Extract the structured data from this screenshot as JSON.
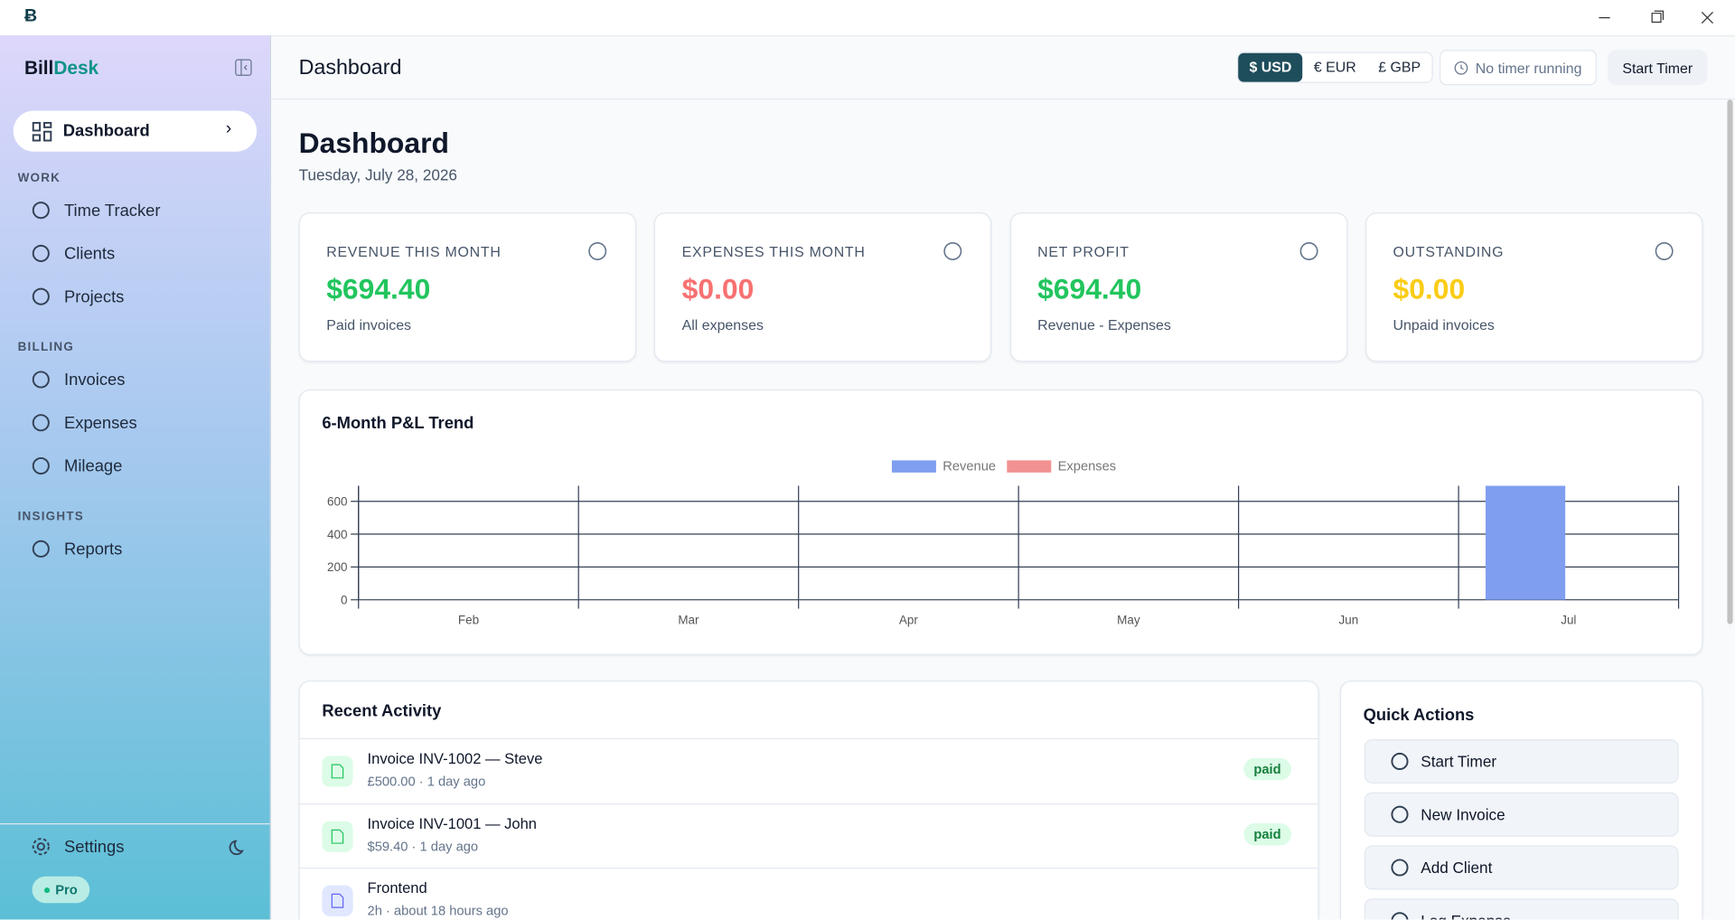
{
  "sidebar": {
    "brand": [
      "Bill",
      "Desk"
    ],
    "active": "Dashboard",
    "sections": [
      {
        "heading": "WORK",
        "items": [
          "Time Tracker",
          "Clients",
          "Projects"
        ]
      },
      {
        "heading": "BILLING",
        "items": [
          "Invoices",
          "Expenses",
          "Mileage"
        ]
      },
      {
        "heading": "INSIGHTS",
        "items": [
          "Reports"
        ]
      }
    ],
    "settings": "Settings",
    "plan": "Pro"
  },
  "header": {
    "title": "Dashboard",
    "currencies": [
      "$ USD",
      "€ EUR",
      "£ GBP"
    ],
    "timer_status": "No timer running",
    "start_timer": "Start Timer"
  },
  "page": {
    "title": "Dashboard",
    "date": "Tuesday, July 28, 2026"
  },
  "cards": [
    {
      "label": "REVENUE THIS MONTH",
      "value": "$694.40",
      "note": "Paid invoices",
      "color": "#22c55e"
    },
    {
      "label": "EXPENSES THIS MONTH",
      "value": "$0.00",
      "note": "All expenses",
      "color": "#f87171"
    },
    {
      "label": "NET PROFIT",
      "value": "$694.40",
      "note": "Revenue - Expenses",
      "color": "#22c55e"
    },
    {
      "label": "OUTSTANDING",
      "value": "$0.00",
      "note": "Unpaid invoices",
      "color": "#facc15"
    }
  ],
  "chart_data": {
    "type": "bar",
    "title": "6-Month P&L Trend",
    "categories": [
      "Feb",
      "Mar",
      "Apr",
      "May",
      "Jun",
      "Jul"
    ],
    "series": [
      {
        "name": "Revenue",
        "color": "#7f9ef0",
        "values": [
          0,
          0,
          0,
          0,
          0,
          694.4
        ]
      },
      {
        "name": "Expenses",
        "color": "#f29191",
        "values": [
          0,
          0,
          0,
          0,
          0,
          0
        ]
      }
    ],
    "ylim": [
      0,
      694.4
    ],
    "yticks": [
      0,
      200,
      400,
      600
    ],
    "grid": true,
    "legend": "top"
  },
  "activity": {
    "title": "Recent Activity",
    "items": [
      {
        "title": "Invoice INV-1002 — Steve",
        "meta": "£500.00 · 1 day ago",
        "status": "paid"
      },
      {
        "title": "Invoice INV-1001 — John",
        "meta": "$59.40 · 1 day ago",
        "status": "paid"
      },
      {
        "title": "Frontend",
        "meta": "2h · about 18 hours ago"
      }
    ]
  },
  "quick_actions": {
    "title": "Quick Actions",
    "items": [
      "Start Timer",
      "New Invoice",
      "Add Client",
      "Log Expense"
    ]
  }
}
